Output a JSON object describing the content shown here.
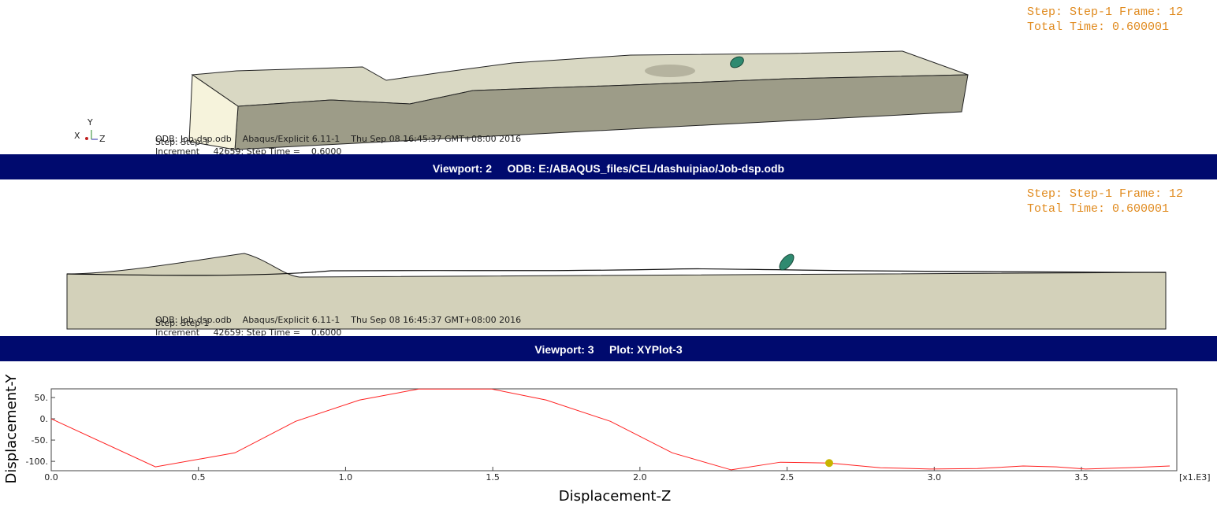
{
  "viewport1": {
    "status_step": "Step: Step-1   Frame: 12",
    "status_time": "Total Time: 0.600001",
    "info_odb": "ODB: Job-dsp.odb    Abaqus/Explicit 6.11-1    Thu Sep 08 16:45:37 GMT+08:00 2016",
    "info_step": "Step: Step-1",
    "info_increment": "Increment     42659: Step Time =    0.6000",
    "triad": {
      "y": "Y",
      "x": "X",
      "z": "Z"
    }
  },
  "viewport2": {
    "title": "Viewport: 2     ODB: E:/ABAQUS_files/CEL/dashuipiao/Job-dsp.odb",
    "status_step": "Step: Step-1   Frame: 12",
    "status_time": "Total Time: 0.600001",
    "info_odb": "ODB: Job-dsp.odb    Abaqus/Explicit 6.11-1    Thu Sep 08 16:45:37 GMT+08:00 2016",
    "info_step": "Step: Step-1",
    "info_increment": "Increment     42659: Step Time =    0.6000"
  },
  "viewport3": {
    "title": "Viewport: 3     Plot: XYPlot-3"
  },
  "chart_data": {
    "type": "line",
    "x_label": "Displacement-Z",
    "y_label": "Displacement-Y",
    "x_multiplier": "[x1.E3]",
    "x": [
      0,
      0.354,
      0.624,
      0.83,
      1.047,
      1.248,
      1.497,
      1.682,
      1.9,
      2.11,
      2.31,
      2.477,
      2.643,
      2.817,
      2.986,
      3.147,
      3.302,
      3.415,
      3.514,
      3.656,
      3.8
    ],
    "series": [
      {
        "name": "XYPlot-3",
        "color": "#ff2020",
        "values": [
          0,
          -113,
          -80,
          -6,
          44,
          70,
          70,
          44,
          -6,
          -80,
          -120,
          -102,
          -104,
          -115,
          -118,
          -117,
          -111,
          -113,
          -118,
          -115,
          -111
        ]
      }
    ],
    "marker": {
      "x": 2.643,
      "y": -104,
      "color": "#c8b400"
    },
    "xlim": [
      0,
      3.824
    ],
    "ylim": [
      -122,
      70.4
    ],
    "xticks": [
      {
        "value": 0,
        "label": "0.0"
      },
      0.5,
      {
        "value": 1,
        "label": "1.0"
      },
      1.5,
      {
        "value": 2,
        "label": "2.0"
      },
      2.5,
      {
        "value": 3,
        "label": "3.0"
      },
      3.5
    ],
    "yticks": [
      {
        "value": 50,
        "label": "50."
      },
      {
        "value": 0,
        "label": "0."
      },
      {
        "value": -50,
        "label": "-50."
      },
      {
        "value": -100,
        "label": "-100."
      }
    ],
    "grid": false
  }
}
